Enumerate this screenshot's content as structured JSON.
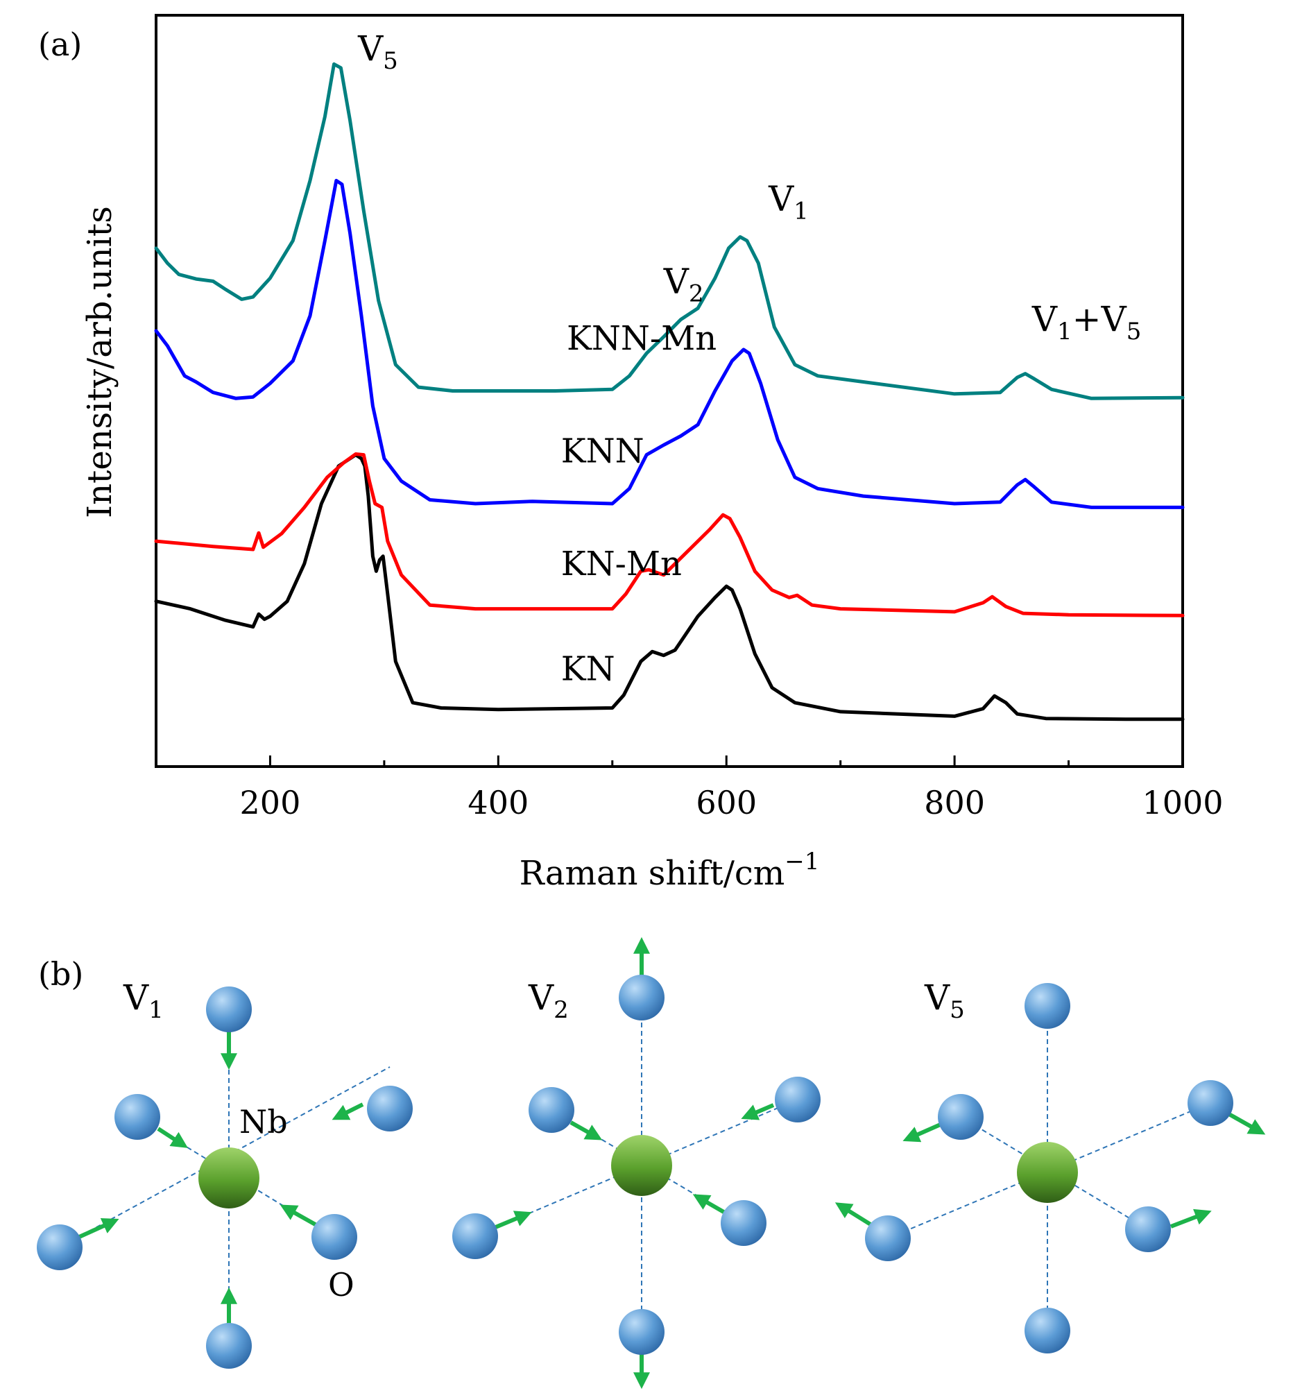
{
  "panel_a_label": "(a)",
  "panel_b_label": "(b)",
  "chart_data": {
    "type": "line",
    "xlabel": "Raman shift/cm",
    "xlabel_sup": "−1",
    "ylabel": "Intensity/arb.units",
    "xlim": [
      100,
      1000
    ],
    "ylim": [
      0,
      100
    ],
    "xticks": [
      200,
      400,
      600,
      800,
      1000
    ],
    "xtick_labels": [
      "200",
      "400",
      "600",
      "800",
      "1000"
    ],
    "yticks_shown": false,
    "series": [
      {
        "name": "KN",
        "color": "#000000",
        "points": [
          [
            100,
            22
          ],
          [
            130,
            21
          ],
          [
            160,
            19.5
          ],
          [
            185,
            18.6
          ],
          [
            190,
            20.3
          ],
          [
            195,
            19.6
          ],
          [
            200,
            20
          ],
          [
            215,
            22
          ],
          [
            230,
            27
          ],
          [
            245,
            35
          ],
          [
            260,
            40
          ],
          [
            275,
            41.5
          ],
          [
            280,
            41
          ],
          [
            283,
            40
          ],
          [
            286,
            36
          ],
          [
            290,
            28
          ],
          [
            293,
            26
          ],
          [
            296,
            27.5
          ],
          [
            299,
            28
          ],
          [
            303,
            23
          ],
          [
            310,
            14
          ],
          [
            325,
            8.5
          ],
          [
            350,
            7.8
          ],
          [
            400,
            7.6
          ],
          [
            500,
            7.8
          ],
          [
            510,
            9.5
          ],
          [
            525,
            14
          ],
          [
            535,
            15.3
          ],
          [
            545,
            14.8
          ],
          [
            555,
            15.5
          ],
          [
            575,
            20
          ],
          [
            590,
            22.5
          ],
          [
            600,
            24
          ],
          [
            605,
            23.5
          ],
          [
            612,
            21
          ],
          [
            625,
            15
          ],
          [
            640,
            10.5
          ],
          [
            660,
            8.5
          ],
          [
            700,
            7.3
          ],
          [
            800,
            6.7
          ],
          [
            825,
            7.7
          ],
          [
            835,
            9.4
          ],
          [
            845,
            8.5
          ],
          [
            855,
            7
          ],
          [
            880,
            6.4
          ],
          [
            950,
            6.3
          ],
          [
            1000,
            6.3
          ]
        ]
      },
      {
        "name": "KN-Mn",
        "color": "#ff0000",
        "points": [
          [
            100,
            30
          ],
          [
            150,
            29.3
          ],
          [
            185,
            28.9
          ],
          [
            190,
            31.1
          ],
          [
            194,
            29.2
          ],
          [
            210,
            31
          ],
          [
            230,
            34.5
          ],
          [
            250,
            38.5
          ],
          [
            265,
            40.5
          ],
          [
            275,
            41.6
          ],
          [
            282,
            41.5
          ],
          [
            287,
            38
          ],
          [
            292,
            35
          ],
          [
            298,
            34.5
          ],
          [
            303,
            30
          ],
          [
            315,
            25.5
          ],
          [
            340,
            21.5
          ],
          [
            380,
            21
          ],
          [
            500,
            21
          ],
          [
            512,
            23
          ],
          [
            525,
            26
          ],
          [
            532,
            26.2
          ],
          [
            545,
            25.5
          ],
          [
            565,
            28.5
          ],
          [
            585,
            31.5
          ],
          [
            597,
            33.5
          ],
          [
            603,
            33
          ],
          [
            612,
            30.5
          ],
          [
            625,
            26
          ],
          [
            640,
            23.5
          ],
          [
            655,
            22.5
          ],
          [
            662,
            22.8
          ],
          [
            675,
            21.5
          ],
          [
            700,
            21
          ],
          [
            800,
            20.6
          ],
          [
            825,
            21.8
          ],
          [
            833,
            22.6
          ],
          [
            845,
            21.3
          ],
          [
            860,
            20.4
          ],
          [
            900,
            20.2
          ],
          [
            1000,
            20.1
          ]
        ]
      },
      {
        "name": "KNN",
        "color": "#0000ff",
        "points": [
          [
            100,
            58
          ],
          [
            110,
            56
          ],
          [
            125,
            52
          ],
          [
            135,
            51.2
          ],
          [
            150,
            49.8
          ],
          [
            170,
            49
          ],
          [
            185,
            49.2
          ],
          [
            200,
            51
          ],
          [
            220,
            54
          ],
          [
            235,
            60
          ],
          [
            248,
            70
          ],
          [
            258,
            78
          ],
          [
            263,
            77.5
          ],
          [
            270,
            71
          ],
          [
            280,
            60
          ],
          [
            290,
            48
          ],
          [
            300,
            41
          ],
          [
            315,
            38
          ],
          [
            340,
            35.5
          ],
          [
            380,
            35
          ],
          [
            430,
            35.3
          ],
          [
            500,
            35
          ],
          [
            515,
            37
          ],
          [
            530,
            41.5
          ],
          [
            545,
            42.8
          ],
          [
            560,
            44
          ],
          [
            575,
            45.5
          ],
          [
            590,
            50
          ],
          [
            605,
            54
          ],
          [
            615,
            55.5
          ],
          [
            620,
            55
          ],
          [
            630,
            51
          ],
          [
            645,
            43.5
          ],
          [
            660,
            38.5
          ],
          [
            680,
            37
          ],
          [
            720,
            36
          ],
          [
            800,
            35
          ],
          [
            840,
            35.2
          ],
          [
            855,
            37.5
          ],
          [
            862,
            38.2
          ],
          [
            870,
            37.2
          ],
          [
            885,
            35.2
          ],
          [
            920,
            34.5
          ],
          [
            1000,
            34.5
          ]
        ]
      },
      {
        "name": "KNN-Mn",
        "color": "#008080",
        "points": [
          [
            100,
            69
          ],
          [
            110,
            67
          ],
          [
            120,
            65.5
          ],
          [
            135,
            64.9
          ],
          [
            150,
            64.6
          ],
          [
            160,
            63.6
          ],
          [
            175,
            62.2
          ],
          [
            185,
            62.5
          ],
          [
            200,
            65
          ],
          [
            220,
            70
          ],
          [
            235,
            78
          ],
          [
            248,
            86.5
          ],
          [
            256,
            93.5
          ],
          [
            262,
            93
          ],
          [
            270,
            86
          ],
          [
            282,
            74
          ],
          [
            295,
            62
          ],
          [
            310,
            53.5
          ],
          [
            330,
            50.5
          ],
          [
            360,
            50
          ],
          [
            450,
            50
          ],
          [
            500,
            50.2
          ],
          [
            515,
            52
          ],
          [
            530,
            55
          ],
          [
            545,
            57.2
          ],
          [
            560,
            59.5
          ],
          [
            575,
            61
          ],
          [
            590,
            65
          ],
          [
            602,
            69
          ],
          [
            612,
            70.5
          ],
          [
            618,
            70
          ],
          [
            628,
            67
          ],
          [
            642,
            58.5
          ],
          [
            660,
            53.5
          ],
          [
            680,
            52
          ],
          [
            720,
            51.2
          ],
          [
            800,
            49.6
          ],
          [
            840,
            49.8
          ],
          [
            855,
            51.8
          ],
          [
            862,
            52.3
          ],
          [
            870,
            51.6
          ],
          [
            885,
            50.2
          ],
          [
            920,
            49
          ],
          [
            1000,
            49.1
          ]
        ]
      }
    ],
    "series_labels": [
      {
        "text": "KNN-Mn",
        "x": 460,
        "y": 55.5
      },
      {
        "text": "KNN",
        "x": 455,
        "y": 40.5
      },
      {
        "text": "KN-Mn",
        "x": 455,
        "y": 25.5
      },
      {
        "text": "KN",
        "x": 455,
        "y": 11.5
      }
    ],
    "peak_labels": [
      {
        "text": "V",
        "sub": "5",
        "x": 277,
        "y": 94
      },
      {
        "text": "V",
        "sub": "2",
        "x": 545,
        "y": 63
      },
      {
        "text": "V",
        "sub": "1",
        "x": 637,
        "y": 74
      },
      {
        "text": "V",
        "sub": "1",
        "mid": "+V",
        "sub2": "5",
        "x": 868,
        "y": 58
      }
    ]
  },
  "panel_b": {
    "modes": [
      {
        "title": "V",
        "sub": "1"
      },
      {
        "title": "V",
        "sub": "2"
      },
      {
        "title": "V",
        "sub": "5"
      }
    ],
    "center_atom_label": "Nb",
    "outer_atom_label": "O",
    "atom_colors": {
      "oxygen": "#5b9bd5",
      "niobium": "#5aa02c",
      "arrow": "#1db34a",
      "bond": "#2e75b6"
    }
  }
}
